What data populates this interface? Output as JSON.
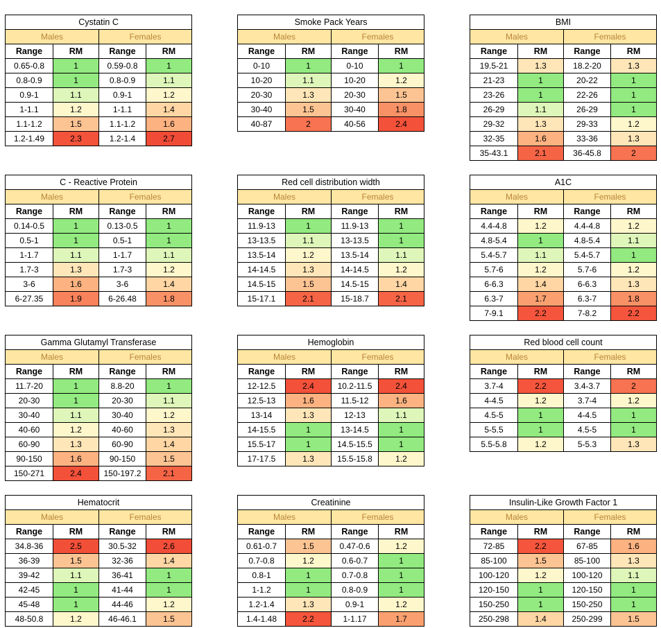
{
  "labels": {
    "males": "Males",
    "females": "Females",
    "range": "Range",
    "rm": "RM"
  },
  "tables": [
    {
      "title": "Cystatin C",
      "rows": [
        [
          "0.65-0.8",
          "1",
          "0.59-0.8",
          "1"
        ],
        [
          "0.8-0.9",
          "1",
          "0.8-0.9",
          "1.1"
        ],
        [
          "0.9-1",
          "1.1",
          "0.9-1",
          "1.2"
        ],
        [
          "1-1.1",
          "1.2",
          "1-1.1",
          "1.4"
        ],
        [
          "1.1-1.2",
          "1.5",
          "1.1-1.2",
          "1.6"
        ],
        [
          "1.2-1.49",
          "2.3",
          "1.2-1.4",
          "2.7"
        ]
      ]
    },
    {
      "title": "Smoke Pack Years",
      "rows": [
        [
          "0-10",
          "1",
          "0-10",
          "1"
        ],
        [
          "10-20",
          "1.1",
          "10-20",
          "1.2"
        ],
        [
          "20-30",
          "1.3",
          "20-30",
          "1.5"
        ],
        [
          "30-40",
          "1.5",
          "30-40",
          "1.8"
        ],
        [
          "40-87",
          "2",
          "40-56",
          "2.4"
        ]
      ]
    },
    {
      "title": "BMI",
      "rows": [
        [
          "19.5-21",
          "1.3",
          "18.2-20",
          "1.3"
        ],
        [
          "21-23",
          "1",
          "20-22",
          "1"
        ],
        [
          "23-26",
          "1",
          "22-26",
          "1"
        ],
        [
          "26-29",
          "1.1",
          "26-29",
          "1"
        ],
        [
          "29-32",
          "1.3",
          "29-33",
          "1.2"
        ],
        [
          "32-35",
          "1.6",
          "33-36",
          "1.3"
        ],
        [
          "35-43.1",
          "2.1",
          "36-45.8",
          "2"
        ]
      ]
    },
    {
      "title": "C - Reactive Protein",
      "rows": [
        [
          "0.14-0.5",
          "1",
          "0.13-0.5",
          "1"
        ],
        [
          "0.5-1",
          "1",
          "0.5-1",
          "1"
        ],
        [
          "1-1.7",
          "1.1",
          "1-1.7",
          "1.1"
        ],
        [
          "1.7-3",
          "1.3",
          "1.7-3",
          "1.2"
        ],
        [
          "3-6",
          "1.6",
          "3-6",
          "1.4"
        ],
        [
          "6-27.35",
          "1.9",
          "6-26.48",
          "1.8"
        ]
      ]
    },
    {
      "title": "Red cell distribution width",
      "rows": [
        [
          "11.9-13",
          "1",
          "11.9-13",
          "1"
        ],
        [
          "13-13.5",
          "1.1",
          "13-13.5",
          "1"
        ],
        [
          "13.5-14",
          "1.2",
          "13.5-14",
          "1.1"
        ],
        [
          "14-14.5",
          "1.3",
          "14-14.5",
          "1.2"
        ],
        [
          "14.5-15",
          "1.5",
          "14.5-15",
          "1.4"
        ],
        [
          "15-17.1",
          "2.1",
          "15-18.7",
          "2.1"
        ]
      ]
    },
    {
      "title": "A1C",
      "rows": [
        [
          "4.4-4.8",
          "1.2",
          "4.4-4.8",
          "1.2"
        ],
        [
          "4.8-5.4",
          "1",
          "4.8-5.4",
          "1.1"
        ],
        [
          "5.4-5.7",
          "1.1",
          "5.4-5.7",
          "1"
        ],
        [
          "5.7-6",
          "1.2",
          "5.7-6",
          "1.2"
        ],
        [
          "6-6.3",
          "1.4",
          "6-6.3",
          "1.3"
        ],
        [
          "6.3-7",
          "1.7",
          "6.3-7",
          "1.8"
        ],
        [
          "7-9.1",
          "2.2",
          "7-8.2",
          "2.2"
        ]
      ]
    },
    {
      "title": "Gamma Glutamyl Transferase",
      "rows": [
        [
          "11.7-20",
          "1",
          "8.8-20",
          "1"
        ],
        [
          "20-30",
          "1",
          "20-30",
          "1.1"
        ],
        [
          "30-40",
          "1.1",
          "30-40",
          "1.2"
        ],
        [
          "40-60",
          "1.2",
          "40-60",
          "1.3"
        ],
        [
          "60-90",
          "1.3",
          "60-90",
          "1.4"
        ],
        [
          "90-150",
          "1.6",
          "90-150",
          "1.5"
        ],
        [
          "150-271",
          "2.4",
          "150-197.2",
          "2.1"
        ]
      ]
    },
    {
      "title": "Hemoglobin",
      "rows": [
        [
          "12-12.5",
          "2.4",
          "10.2-11.5",
          "2.4"
        ],
        [
          "12.5-13",
          "1.6",
          "11.5-12",
          "1.6"
        ],
        [
          "13-14",
          "1.3",
          "12-13",
          "1.1"
        ],
        [
          "14-15.5",
          "1",
          "13-14.5",
          "1"
        ],
        [
          "15.5-17",
          "1",
          "14.5-15.5",
          "1"
        ],
        [
          "17-17.5",
          "1.3",
          "15.5-15.8",
          "1.2"
        ]
      ]
    },
    {
      "title": "Red blood cell count",
      "rows": [
        [
          "3.7-4",
          "2.2",
          "3.4-3.7",
          "2"
        ],
        [
          "4-4.5",
          "1.2",
          "3.7-4",
          "1.2"
        ],
        [
          "4.5-5",
          "1",
          "4-4.5",
          "1"
        ],
        [
          "5-5.5",
          "1",
          "4.5-5",
          "1"
        ],
        [
          "5.5-5.8",
          "1.2",
          "5-5.3",
          "1.3"
        ]
      ]
    },
    {
      "title": "Hematocrit",
      "rows": [
        [
          "34.8-36",
          "2.5",
          "30.5-32",
          "2.6"
        ],
        [
          "36-39",
          "1.5",
          "32-36",
          "1.4"
        ],
        [
          "39-42",
          "1.1",
          "36-41",
          "1"
        ],
        [
          "42-45",
          "1",
          "41-44",
          "1"
        ],
        [
          "45-48",
          "1",
          "44-46",
          "1.2"
        ],
        [
          "48-50.8",
          "1.2",
          "46-46.1",
          "1.5"
        ]
      ]
    },
    {
      "title": "Creatinine",
      "rows": [
        [
          "0.61-0.7",
          "1.5",
          "0.47-0.6",
          "1.2"
        ],
        [
          "0.7-0.8",
          "1.2",
          "0.6-0.7",
          "1"
        ],
        [
          "0.8-1",
          "1",
          "0.7-0.8",
          "1"
        ],
        [
          "1-1.2",
          "1",
          "0.8-0.9",
          "1"
        ],
        [
          "1.2-1.4",
          "1.3",
          "0.9-1",
          "1.2"
        ],
        [
          "1.4-1.48",
          "2.2",
          "1-1.17",
          "1.7"
        ]
      ]
    },
    {
      "title": "Insulin-Like Growth Factor 1",
      "rows": [
        [
          "72-85",
          "2.2",
          "67-85",
          "1.6"
        ],
        [
          "85-100",
          "1.5",
          "85-100",
          "1.3"
        ],
        [
          "100-120",
          "1.2",
          "100-120",
          "1.1"
        ],
        [
          "120-150",
          "1",
          "120-150",
          "1"
        ],
        [
          "150-250",
          "1",
          "150-250",
          "1"
        ],
        [
          "250-298",
          "1.4",
          "250-299",
          "1.5"
        ]
      ]
    }
  ]
}
